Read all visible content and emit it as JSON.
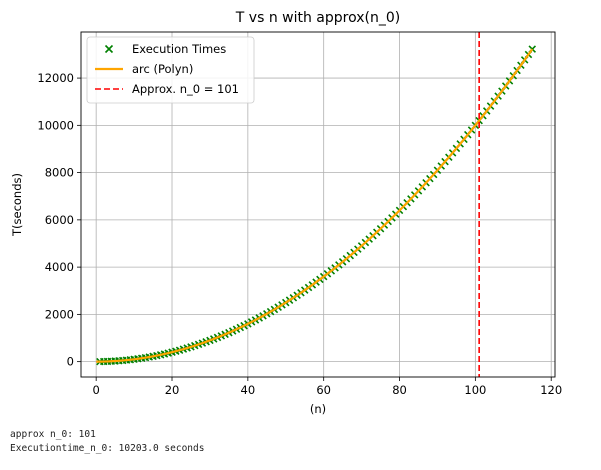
{
  "chart_data": {
    "type": "scatter",
    "title": "T vs n with approx(n_0)",
    "xlabel": "(n)",
    "ylabel": "T(seconds)",
    "xlim": [
      -4,
      121
    ],
    "ylim": [
      -650,
      13950
    ],
    "xticks": [
      0,
      20,
      40,
      60,
      80,
      100,
      120
    ],
    "yticks": [
      0,
      2000,
      4000,
      6000,
      8000,
      10000,
      12000
    ],
    "grid": true,
    "legend_position": "upper-left",
    "legend": [
      {
        "label": "Execution Times",
        "marker": "x",
        "color": "#008000"
      },
      {
        "label": "arc (Polyn)",
        "marker": "line",
        "color": "#FFA500"
      },
      {
        "label": "Approx. n_0 = 101",
        "marker": "dashed-line",
        "color": "#FF0000"
      }
    ],
    "series": [
      {
        "name": "Execution Times",
        "kind": "scatter",
        "marker": "x",
        "color": "#008000",
        "x_start": 1,
        "x_end": 115,
        "x_step": 1,
        "formula": "y = 1.0 * x^2"
      },
      {
        "name": "arc (Polyn)",
        "kind": "line",
        "color": "#FFA500",
        "x_start": 0,
        "x_end": 115,
        "formula": "y = 1.0 * x^2"
      },
      {
        "name": "Approx. n_0 = 101",
        "kind": "vline",
        "color": "#FF0000",
        "x": 101
      }
    ]
  },
  "output": {
    "line1": "approx n_0: 101",
    "line2": "Executiontime_n_0: 10203.0 seconds"
  }
}
